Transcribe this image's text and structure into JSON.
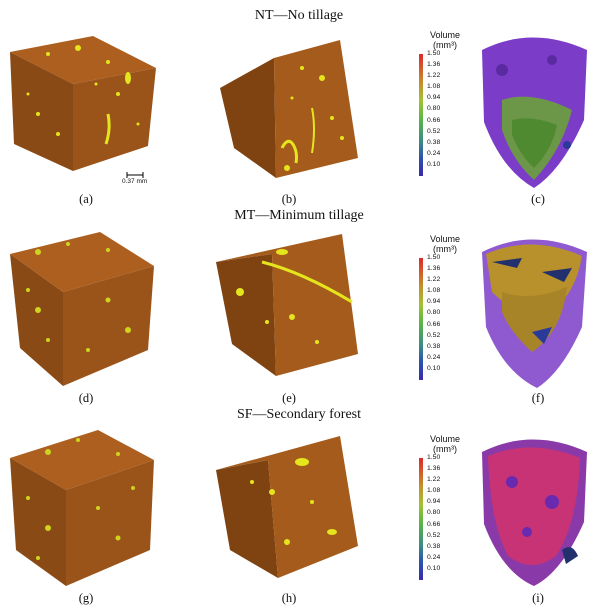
{
  "rows": [
    {
      "title": "NT—No tillage",
      "captions": [
        "(a)",
        "(b)",
        "(c)"
      ],
      "legend": {
        "title_line1": "Volume",
        "title_line2": "(mm³)",
        "ticks": [
          "1.50",
          "1.36",
          "1.22",
          "1.08",
          "0.94",
          "0.80",
          "0.66",
          "0.52",
          "0.38",
          "0.24",
          "0.10"
        ]
      }
    },
    {
      "title": "MT—Minimum tillage",
      "captions": [
        "(d)",
        "(e)",
        "(f)"
      ],
      "legend": {
        "title_line1": "Volume",
        "title_line2": "(mm³)",
        "ticks": [
          "1.50",
          "1.36",
          "1.22",
          "1.08",
          "0.94",
          "0.80",
          "0.66",
          "0.52",
          "0.38",
          "0.24",
          "0.10"
        ]
      }
    },
    {
      "title": "SF—Secondary forest",
      "captions": [
        "(g)",
        "(h)",
        "(i)"
      ],
      "legend": {
        "title_line1": "Volume",
        "title_line2": "(mm³)",
        "ticks": [
          "1.50",
          "1.36",
          "1.22",
          "1.08",
          "0.94",
          "0.80",
          "0.66",
          "0.52",
          "0.38",
          "0.24",
          "0.10"
        ]
      }
    }
  ],
  "scale_bar": {
    "label": "0.37 mm"
  },
  "colors": {
    "soil_top": "#a85c1e",
    "soil_left": "#8a4a15",
    "soil_right": "#9c5519",
    "pores": "#e8e81a",
    "purple": "#7a3cc8",
    "green": "#6fae3a",
    "pink": "#d8306a",
    "olive": "#b89a2a"
  }
}
